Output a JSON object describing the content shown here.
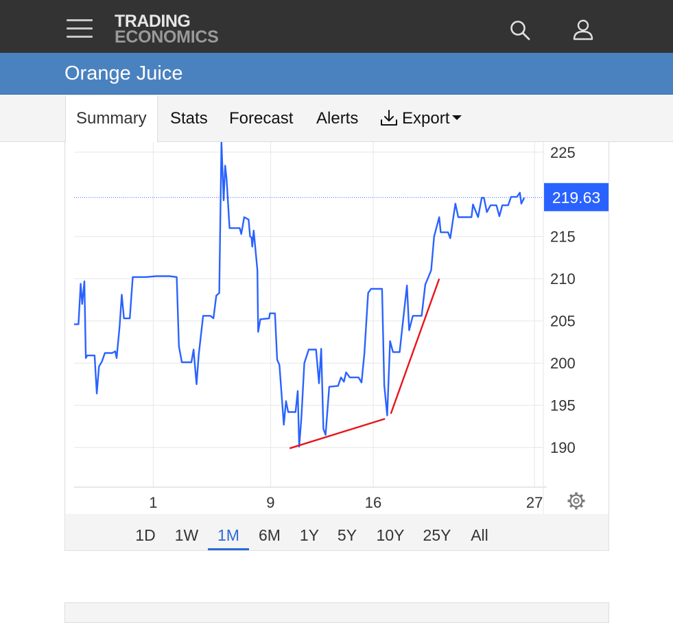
{
  "header": {
    "logo_line1": "TRADING",
    "logo_line2": "ECONOMICS"
  },
  "page": {
    "title": "Orange Juice"
  },
  "tabs": [
    {
      "label": "Summary",
      "active": true
    },
    {
      "label": "Stats"
    },
    {
      "label": "Forecast"
    },
    {
      "label": "Alerts"
    },
    {
      "label": "Export"
    }
  ],
  "ranges": [
    {
      "label": "1D"
    },
    {
      "label": "1W"
    },
    {
      "label": "1M",
      "active": true
    },
    {
      "label": "6M"
    },
    {
      "label": "1Y"
    },
    {
      "label": "5Y"
    },
    {
      "label": "10Y"
    },
    {
      "label": "25Y"
    },
    {
      "label": "All"
    }
  ],
  "colors": {
    "line": "#2962ff",
    "trendline": "#e8131b",
    "price_tag": "#2962ff",
    "header_bg": "#333333",
    "title_bg": "#4a82bf"
  },
  "icons": {
    "menu": "hamburger-icon",
    "search": "search-icon",
    "user": "user-icon",
    "export": "download-icon",
    "settings": "gear-icon"
  },
  "chart_data": {
    "type": "line",
    "last_value_label": "219.63",
    "last_value": 219.63,
    "ylim": [
      185.3,
      226.2
    ],
    "y_ticks": [
      190,
      195,
      200,
      205,
      210,
      215,
      225
    ],
    "x_ticks": [
      {
        "label": "1",
        "x": 1
      },
      {
        "label": "9",
        "x": 9
      },
      {
        "label": "16",
        "x": 16
      },
      {
        "label": "27",
        "x": 27
      }
    ],
    "xlim": [
      -4.4,
      27.6
    ],
    "grid": true,
    "series": [
      {
        "points": [
          [
            -4.4,
            204.6
          ],
          [
            -4.1,
            204.6
          ],
          [
            -3.95,
            209.4
          ],
          [
            -3.85,
            207.0
          ],
          [
            -3.7,
            209.7
          ],
          [
            -3.6,
            200.6
          ],
          [
            -3.5,
            200.9
          ],
          [
            -3.0,
            200.9
          ],
          [
            -2.85,
            196.4
          ],
          [
            -2.7,
            199.6
          ],
          [
            -2.5,
            200.2
          ],
          [
            -2.3,
            201.2
          ],
          [
            -1.8,
            201.2
          ],
          [
            -1.6,
            201.4
          ],
          [
            -1.5,
            200.6
          ],
          [
            -1.3,
            204.3
          ],
          [
            -1.15,
            208.1
          ],
          [
            -1.0,
            205.3
          ],
          [
            -0.6,
            205.3
          ],
          [
            -0.4,
            210.2
          ],
          [
            0.5,
            210.2
          ],
          [
            1.2,
            210.3
          ],
          [
            2.1,
            210.3
          ],
          [
            2.6,
            210.2
          ],
          [
            2.75,
            202.0
          ],
          [
            2.95,
            200.1
          ],
          [
            3.6,
            200.1
          ],
          [
            3.75,
            201.6
          ],
          [
            3.8,
            200.5
          ],
          [
            3.95,
            197.5
          ],
          [
            4.1,
            201.0
          ],
          [
            4.4,
            205.6
          ],
          [
            4.9,
            205.6
          ],
          [
            5.1,
            205.3
          ],
          [
            5.3,
            208.0
          ],
          [
            5.5,
            208.3
          ],
          [
            5.65,
            226.2
          ],
          [
            5.8,
            219.3
          ],
          [
            5.9,
            223.4
          ],
          [
            6.0,
            221.8
          ],
          [
            6.2,
            216.0
          ],
          [
            6.9,
            216.0
          ],
          [
            7.0,
            215.3
          ],
          [
            7.2,
            217.3
          ],
          [
            7.5,
            217.0
          ],
          [
            7.6,
            215.0
          ],
          [
            7.7,
            214.9
          ],
          [
            7.75,
            213.8
          ],
          [
            7.85,
            215.7
          ],
          [
            8.1,
            211.0
          ],
          [
            8.15,
            203.7
          ],
          [
            8.3,
            205.2
          ],
          [
            8.9,
            205.3
          ],
          [
            8.95,
            205.9
          ],
          [
            9.3,
            205.9
          ],
          [
            9.45,
            200.4
          ],
          [
            9.6,
            199.8
          ],
          [
            9.9,
            192.7
          ],
          [
            10.05,
            195.5
          ],
          [
            10.2,
            194.2
          ],
          [
            10.7,
            194.2
          ],
          [
            10.85,
            196.7
          ],
          [
            10.95,
            190.1
          ],
          [
            11.1,
            193.5
          ],
          [
            11.3,
            200.0
          ],
          [
            11.6,
            201.6
          ],
          [
            12.1,
            201.6
          ],
          [
            12.3,
            197.6
          ],
          [
            12.45,
            201.7
          ],
          [
            12.6,
            192.2
          ],
          [
            12.75,
            191.5
          ],
          [
            13.0,
            197.2
          ],
          [
            13.6,
            197.3
          ],
          [
            13.8,
            198.3
          ],
          [
            14.0,
            197.8
          ],
          [
            14.15,
            198.9
          ],
          [
            14.4,
            198.3
          ],
          [
            15.0,
            198.3
          ],
          [
            15.2,
            197.7
          ],
          [
            15.4,
            201.2
          ],
          [
            15.65,
            208.3
          ],
          [
            15.85,
            208.8
          ],
          [
            16.6,
            208.8
          ],
          [
            16.75,
            197.4
          ],
          [
            16.95,
            193.8
          ],
          [
            17.15,
            202.6
          ],
          [
            17.35,
            201.3
          ],
          [
            17.8,
            201.3
          ],
          [
            18.0,
            204.5
          ],
          [
            18.3,
            209.2
          ],
          [
            18.45,
            203.9
          ],
          [
            18.7,
            205.6
          ],
          [
            19.3,
            205.6
          ],
          [
            19.55,
            209.3
          ],
          [
            19.95,
            211.0
          ],
          [
            20.15,
            215.0
          ],
          [
            20.5,
            217.3
          ],
          [
            20.6,
            215.5
          ],
          [
            21.1,
            215.5
          ],
          [
            21.25,
            214.8
          ],
          [
            21.6,
            218.9
          ],
          [
            21.8,
            217.3
          ],
          [
            22.7,
            217.3
          ],
          [
            22.8,
            218.8
          ],
          [
            23.15,
            217.3
          ],
          [
            23.4,
            219.6
          ],
          [
            23.55,
            219.6
          ],
          [
            23.75,
            217.9
          ],
          [
            24.0,
            218.7
          ],
          [
            24.4,
            218.7
          ],
          [
            24.6,
            217.4
          ],
          [
            24.8,
            218.7
          ],
          [
            25.2,
            218.7
          ],
          [
            25.4,
            219.7
          ],
          [
            25.8,
            219.7
          ],
          [
            26.0,
            220.2
          ],
          [
            26.1,
            218.9
          ],
          [
            26.3,
            219.6
          ]
        ]
      }
    ],
    "trendlines": [
      {
        "from": [
          10.3,
          189.9
        ],
        "to": [
          16.8,
          193.4
        ]
      },
      {
        "from": [
          17.2,
          194.0
        ],
        "to": [
          20.5,
          210.0
        ]
      }
    ]
  }
}
